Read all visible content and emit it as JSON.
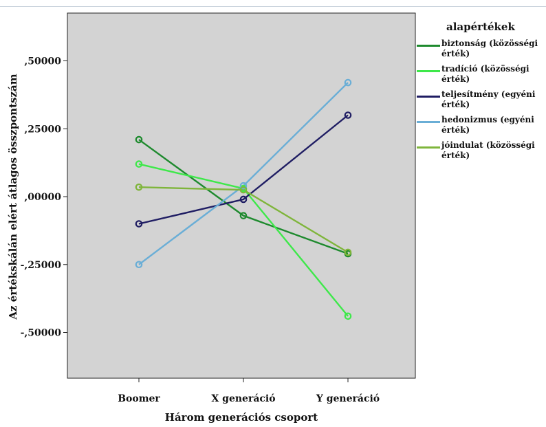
{
  "chart_data": {
    "type": "line",
    "title": "",
    "xlabel": "Három generációs csoport",
    "ylabel": "Az értékskálán elért átlagos összpontszám",
    "categories": [
      "Boomer",
      "X generáció",
      "Y generáció"
    ],
    "ylim": [
      -0.67,
      0.67
    ],
    "yticks": [
      0.5,
      0.25,
      0.0,
      -0.25,
      -0.5
    ],
    "ytick_labels": [
      ",50000",
      ",25000",
      ",00000",
      "-,25000",
      "-,50000"
    ],
    "legend": {
      "title": "alapértékek",
      "position": "right"
    },
    "grid": false,
    "plot_background": "#d3d3d3",
    "series": [
      {
        "name": "biztonság (közösségi érték)",
        "color": "#1e8a2e",
        "values": [
          0.21,
          -0.07,
          -0.21
        ]
      },
      {
        "name": "tradíció (közösségi érték)",
        "color": "#3ee84a",
        "values": [
          0.12,
          0.03,
          -0.44
        ]
      },
      {
        "name": "teljesítmény (egyéni érték)",
        "color": "#1f1d63",
        "values": [
          -0.1,
          -0.01,
          0.3
        ]
      },
      {
        "name": "hedonizmus (egyéni érték)",
        "color": "#6aaed6",
        "values": [
          -0.25,
          0.04,
          0.42
        ]
      },
      {
        "name": "jóindulat (közösségi érték)",
        "color": "#7fb53b",
        "values": [
          0.035,
          0.025,
          -0.205
        ]
      }
    ]
  }
}
